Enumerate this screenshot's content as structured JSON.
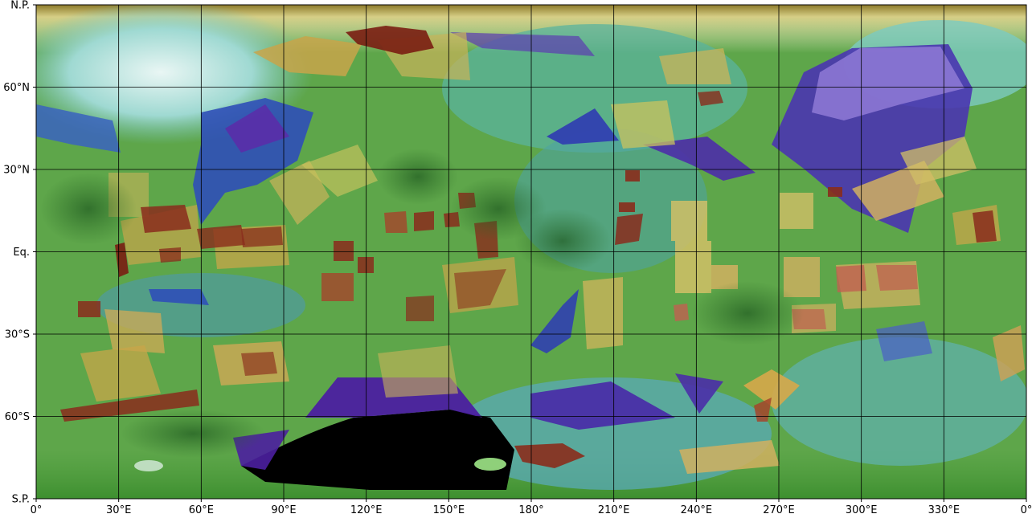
{
  "map": {
    "projection": "equirectangular",
    "x_ticks": [
      {
        "lon": 0,
        "label": "0°"
      },
      {
        "lon": 30,
        "label": "30°E"
      },
      {
        "lon": 60,
        "label": "60°E"
      },
      {
        "lon": 90,
        "label": "90°E"
      },
      {
        "lon": 120,
        "label": "120°E"
      },
      {
        "lon": 150,
        "label": "150°E"
      },
      {
        "lon": 180,
        "label": "180°"
      },
      {
        "lon": 210,
        "label": "210°E"
      },
      {
        "lon": 240,
        "label": "240°E"
      },
      {
        "lon": 270,
        "label": "270°E"
      },
      {
        "lon": 300,
        "label": "300°E"
      },
      {
        "lon": 330,
        "label": "330°E"
      },
      {
        "lon": 360,
        "label": "0°"
      }
    ],
    "y_ticks": [
      {
        "lat": 90,
        "label": "N.P."
      },
      {
        "lat": 60,
        "label": "60°N"
      },
      {
        "lat": 30,
        "label": "30°N"
      },
      {
        "lat": 0,
        "label": "Eq."
      },
      {
        "lat": -30,
        "label": "30°S"
      },
      {
        "lat": -60,
        "label": "60°S"
      },
      {
        "lat": -90,
        "label": "S.P."
      }
    ],
    "x_range": [
      0,
      360
    ],
    "y_range": [
      -90,
      90
    ],
    "grid": true,
    "colors": {
      "green": "#4f9a3c",
      "cyan": "#57a7a6",
      "blue": "#3b5fb5",
      "violet": "#4a2fa3",
      "yellow": "#c9b95a",
      "red": "#8a2c1c",
      "black": "#000000"
    }
  }
}
